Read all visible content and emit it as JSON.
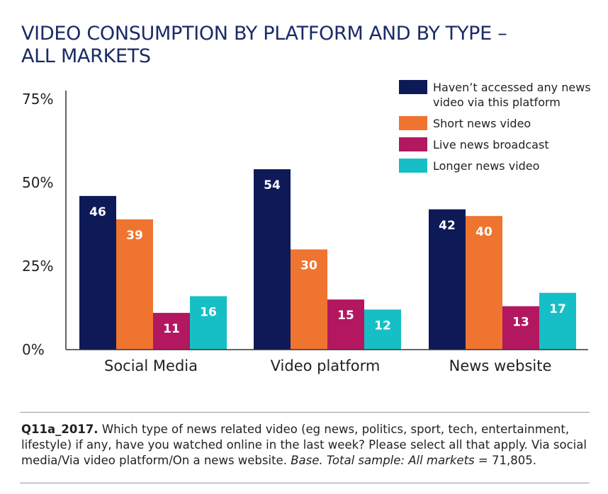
{
  "title_lines": [
    "VIDEO CONSUMPTION BY PLATFORM AND BY TYPE –",
    "ALL MARKETS"
  ],
  "colors": {
    "title": "#1b2a66",
    "axis": "#333333",
    "text": "#222222"
  },
  "chart_data": {
    "type": "bar",
    "title": "VIDEO CONSUMPTION BY PLATFORM AND BY TYPE – ALL MARKETS",
    "categories": [
      "Social Media",
      "Video platform",
      "News website"
    ],
    "series": [
      {
        "name": "Haven’t accessed any news video via this platform",
        "legend_lines": [
          "Haven’t accessed any news",
          "video via this platform"
        ],
        "color": "#0d1a57",
        "values": [
          46,
          54,
          42
        ]
      },
      {
        "name": "Short news video",
        "legend_lines": [
          "Short news video"
        ],
        "color": "#ef7430",
        "values": [
          39,
          30,
          40
        ]
      },
      {
        "name": "Live news broadcast",
        "legend_lines": [
          "Live news broadcast"
        ],
        "color": "#b3175f",
        "values": [
          11,
          15,
          13
        ]
      },
      {
        "name": "Longer news video",
        "legend_lines": [
          "Longer news video"
        ],
        "color": "#16bfc6",
        "values": [
          16,
          12,
          17
        ]
      }
    ],
    "yticks": [
      "75%",
      "50%",
      "25%",
      "0%"
    ],
    "ytick_values": [
      75,
      50,
      25,
      0
    ],
    "ylim": [
      0,
      75
    ],
    "xlabel": "",
    "ylabel": "",
    "grid": false,
    "legend_position": "top-right"
  },
  "footnote": {
    "question_id": "Q11a_2017.",
    "question_text": " Which type of news related video (eg news, politics, sport, tech, entertainment, lifestyle) if any, have you watched online in the last week? Please select all that apply. Via social media/Via video platform/On a news website. ",
    "base_label": "Base. Total sample: All markets",
    "base_value": " = 71,805."
  }
}
